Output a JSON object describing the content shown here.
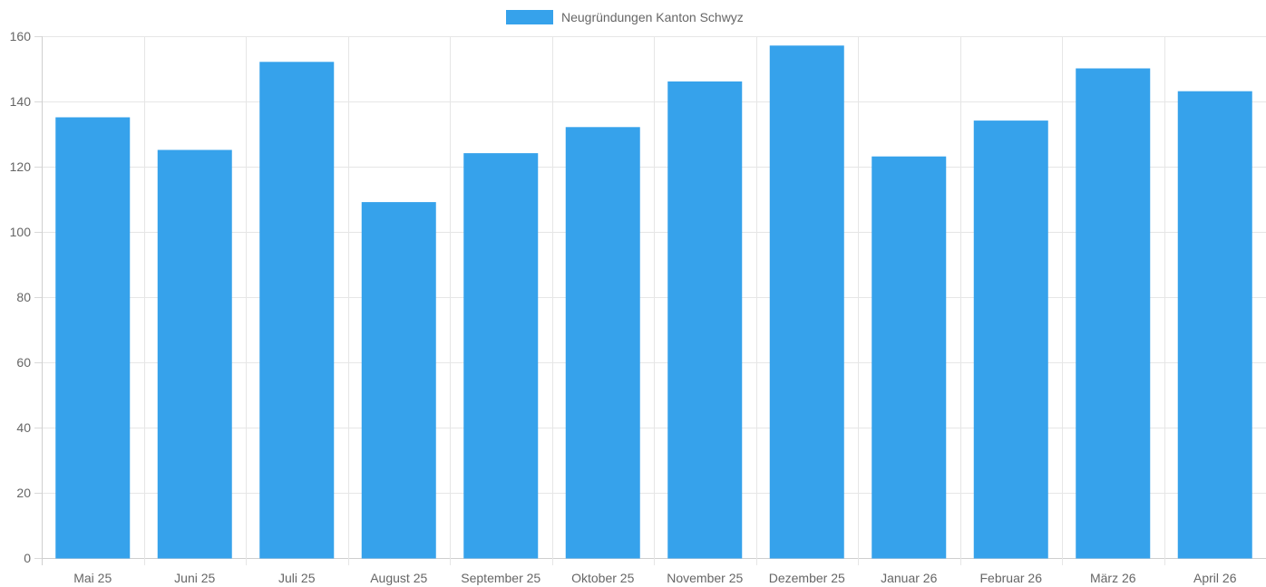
{
  "chart_data": {
    "type": "bar",
    "legend": {
      "position": "top-center"
    },
    "series": [
      {
        "name": "Neugründungen Kanton Schwyz",
        "color": "#36a2eb",
        "values": [
          135,
          125,
          152,
          109,
          124,
          132,
          146,
          157,
          123,
          134,
          150,
          143
        ]
      }
    ],
    "categories": [
      "Mai 25",
      "Juni 25",
      "Juli 25",
      "August 25",
      "September 25",
      "Oktober 25",
      "November 25",
      "Dezember 25",
      "Januar 26",
      "Februar 26",
      "März 26",
      "April 26"
    ],
    "ylim": [
      0,
      160
    ],
    "yticks": [
      "0",
      "20",
      "40",
      "60",
      "80",
      "100",
      "120",
      "140",
      "160"
    ],
    "grid": true,
    "title": "",
    "xlabel": "",
    "ylabel": ""
  }
}
